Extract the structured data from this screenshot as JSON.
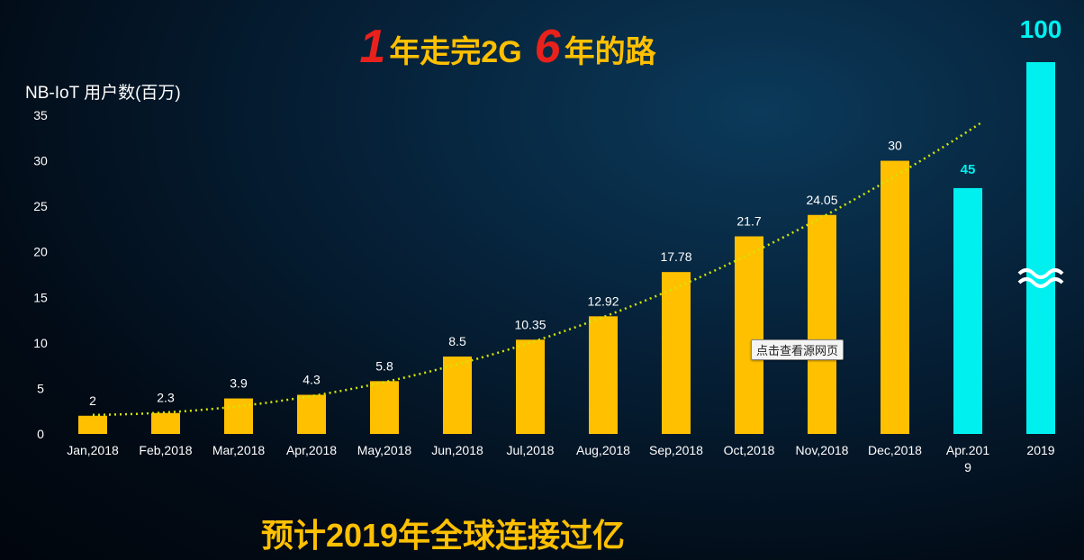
{
  "headline": {
    "num1": "1",
    "text1": "年走完2G",
    "num2": "6",
    "text2": "年的路"
  },
  "footer": "预计2019年全球连接过亿",
  "tooltip": "点击查看源网页",
  "colors": {
    "bar": "#ffc000",
    "highlight": "#00f0f0",
    "trend": "#d4e600",
    "headline_num": "#e8211c"
  },
  "chart_data": {
    "type": "bar",
    "ylabel": "NB-IoT 用户数(百万)",
    "ylim": [
      0,
      35
    ],
    "yticks": [
      0,
      5,
      10,
      15,
      20,
      25,
      30,
      35
    ],
    "categories": [
      "Jan,2018",
      "Feb,2018",
      "Mar,2018",
      "Apr,2018",
      "May,2018",
      "Jun,2018",
      "Jul,2018",
      "Aug,2018",
      "Sep,2018",
      "Oct,2018",
      "Nov,2018",
      "Dec,2018",
      "Apr.2019",
      "2019"
    ],
    "values": [
      2,
      2.3,
      3.9,
      4.3,
      5.8,
      8.5,
      10.35,
      12.92,
      17.78,
      21.7,
      24.05,
      30,
      45,
      100
    ],
    "value_labels": [
      "2",
      "2.3",
      "3.9",
      "4.3",
      "5.8",
      "8.5",
      "10.35",
      "12.92",
      "17.78",
      "21.7",
      "24.05",
      "30",
      "45",
      "100"
    ],
    "highlighted": [
      "Apr.2019",
      "2019"
    ],
    "axis_break": "2019",
    "trendline": "dotted polynomial",
    "grid": false
  }
}
